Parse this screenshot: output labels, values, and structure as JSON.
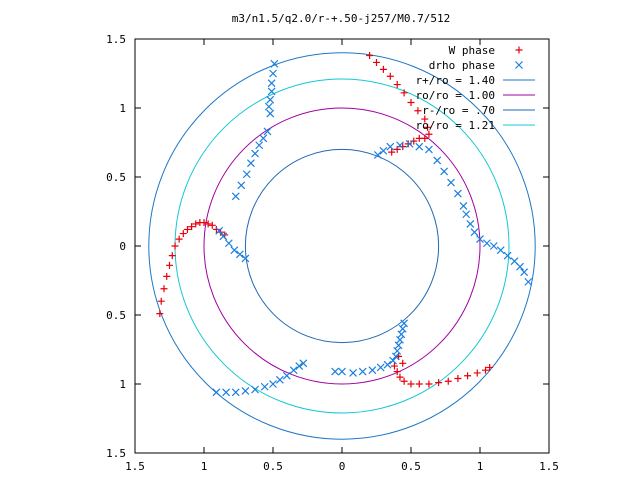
{
  "chart_data": {
    "type": "scatter",
    "title": "m3/n1.5/q2.0/r-+.50-j257/M0.7/512",
    "xlim": [
      -1.5,
      1.5
    ],
    "ylim": [
      -1.5,
      1.5
    ],
    "x_ticks": [
      {
        "value": -1.5,
        "label": "1.5"
      },
      {
        "value": -1.0,
        "label": "1"
      },
      {
        "value": -0.5,
        "label": "0.5"
      },
      {
        "value": 0,
        "label": "0"
      },
      {
        "value": 0.5,
        "label": "0.5"
      },
      {
        "value": 1.0,
        "label": "1"
      },
      {
        "value": 1.5,
        "label": "1.5"
      }
    ],
    "y_ticks": [
      {
        "value": 1.5,
        "label": "1.5"
      },
      {
        "value": 1.0,
        "label": "1"
      },
      {
        "value": 0.5,
        "label": "0.5"
      },
      {
        "value": 0,
        "label": "0"
      },
      {
        "value": -0.5,
        "label": "0.5"
      },
      {
        "value": -1.0,
        "label": "1"
      },
      {
        "value": -1.5,
        "label": "1.5"
      }
    ],
    "grid": false,
    "legend_position": "top-right",
    "circles": [
      {
        "name": "r+/ro = 1.40",
        "radius": 1.4,
        "color": "#1f77c4"
      },
      {
        "name": "ro/ro = 1.00",
        "radius": 1.0,
        "color": "#a100a1"
      },
      {
        "name": "r-/ro = .70",
        "radius": 0.7,
        "color": "#1f68b4"
      },
      {
        "name": "ro/ro = 1.21",
        "radius": 1.21,
        "color": "#14c8d4"
      }
    ],
    "series": [
      {
        "name": "W phase",
        "marker": "plus",
        "color": "#e8000b",
        "points": [
          [
            -1.32,
            -0.49
          ],
          [
            -1.31,
            -0.4
          ],
          [
            -1.29,
            -0.31
          ],
          [
            -1.27,
            -0.22
          ],
          [
            -1.25,
            -0.14
          ],
          [
            -1.23,
            -0.07
          ],
          [
            -1.21,
            0.0
          ],
          [
            -1.18,
            0.05
          ],
          [
            -1.15,
            0.09
          ],
          [
            -1.12,
            0.12
          ],
          [
            -1.09,
            0.14
          ],
          [
            -1.06,
            0.16
          ],
          [
            -1.03,
            0.17
          ],
          [
            -1.0,
            0.17
          ],
          [
            -0.97,
            0.16
          ],
          [
            -0.94,
            0.15
          ],
          [
            -0.91,
            0.12
          ],
          [
            -0.88,
            0.1
          ],
          [
            -0.85,
            0.08
          ],
          [
            0.2,
            1.38
          ],
          [
            0.25,
            1.33
          ],
          [
            0.3,
            1.28
          ],
          [
            0.35,
            1.23
          ],
          [
            0.4,
            1.17
          ],
          [
            0.45,
            1.11
          ],
          [
            0.5,
            1.04
          ],
          [
            0.55,
            0.98
          ],
          [
            0.6,
            0.92
          ],
          [
            0.62,
            0.86
          ],
          [
            0.63,
            0.81
          ],
          [
            0.6,
            0.78
          ],
          [
            0.56,
            0.78
          ],
          [
            0.52,
            0.76
          ],
          [
            0.48,
            0.74
          ],
          [
            0.44,
            0.72
          ],
          [
            0.4,
            0.7
          ],
          [
            0.36,
            0.68
          ],
          [
            0.38,
            -0.87
          ],
          [
            0.4,
            -0.91
          ],
          [
            0.42,
            -0.95
          ],
          [
            0.45,
            -0.98
          ],
          [
            0.5,
            -1.0
          ],
          [
            0.56,
            -1.0
          ],
          [
            0.63,
            -1.0
          ],
          [
            0.7,
            -0.99
          ],
          [
            0.77,
            -0.98
          ],
          [
            0.84,
            -0.96
          ],
          [
            0.91,
            -0.94
          ],
          [
            0.98,
            -0.92
          ],
          [
            1.04,
            -0.9
          ],
          [
            1.07,
            -0.88
          ],
          [
            0.44,
            -0.85
          ],
          [
            0.41,
            -0.8
          ]
        ]
      },
      {
        "name": "drho phase",
        "marker": "cross",
        "color": "#1a7fe0",
        "points": [
          [
            -0.89,
            0.11
          ],
          [
            -0.86,
            0.07
          ],
          [
            -0.82,
            0.02
          ],
          [
            -0.78,
            -0.03
          ],
          [
            -0.74,
            -0.06
          ],
          [
            -0.7,
            -0.09
          ],
          [
            -0.49,
            1.32
          ],
          [
            -0.5,
            1.25
          ],
          [
            -0.51,
            1.18
          ],
          [
            -0.51,
            1.12
          ],
          [
            -0.52,
            1.06
          ],
          [
            -0.53,
            1.01
          ],
          [
            -0.52,
            0.96
          ],
          [
            -0.54,
            0.83
          ],
          [
            -0.57,
            0.78
          ],
          [
            -0.6,
            0.73
          ],
          [
            -0.63,
            0.67
          ],
          [
            -0.66,
            0.6
          ],
          [
            -0.69,
            0.52
          ],
          [
            -0.73,
            0.44
          ],
          [
            -0.77,
            0.36
          ],
          [
            0.26,
            0.66
          ],
          [
            0.3,
            0.69
          ],
          [
            0.35,
            0.72
          ],
          [
            0.42,
            0.73
          ],
          [
            0.49,
            0.74
          ],
          [
            0.56,
            0.72
          ],
          [
            0.63,
            0.7
          ],
          [
            0.69,
            0.62
          ],
          [
            0.74,
            0.54
          ],
          [
            0.79,
            0.46
          ],
          [
            0.84,
            0.38
          ],
          [
            0.88,
            0.29
          ],
          [
            0.9,
            0.23
          ],
          [
            0.93,
            0.16
          ],
          [
            0.96,
            0.1
          ],
          [
            1.0,
            0.05
          ],
          [
            1.05,
            0.02
          ],
          [
            1.1,
            0.0
          ],
          [
            1.15,
            -0.03
          ],
          [
            1.2,
            -0.07
          ],
          [
            1.25,
            -0.11
          ],
          [
            1.29,
            -0.15
          ],
          [
            1.32,
            -0.19
          ],
          [
            1.35,
            -0.26
          ],
          [
            0.45,
            -0.56
          ],
          [
            0.44,
            -0.6
          ],
          [
            0.43,
            -0.64
          ],
          [
            0.42,
            -0.68
          ],
          [
            0.41,
            -0.72
          ],
          [
            0.4,
            -0.76
          ],
          [
            0.39,
            -0.8
          ],
          [
            0.37,
            -0.83
          ],
          [
            0.33,
            -0.86
          ],
          [
            0.28,
            -0.88
          ],
          [
            0.22,
            -0.9
          ],
          [
            0.15,
            -0.91
          ],
          [
            0.08,
            -0.92
          ],
          [
            0.0,
            -0.91
          ],
          [
            -0.05,
            -0.91
          ],
          [
            -0.28,
            -0.85
          ],
          [
            -0.31,
            -0.87
          ],
          [
            -0.35,
            -0.9
          ],
          [
            -0.4,
            -0.94
          ],
          [
            -0.45,
            -0.97
          ],
          [
            -0.5,
            -1.0
          ],
          [
            -0.56,
            -1.02
          ],
          [
            -0.63,
            -1.04
          ],
          [
            -0.7,
            -1.05
          ],
          [
            -0.77,
            -1.06
          ],
          [
            -0.84,
            -1.06
          ],
          [
            -0.91,
            -1.06
          ]
        ]
      }
    ]
  }
}
